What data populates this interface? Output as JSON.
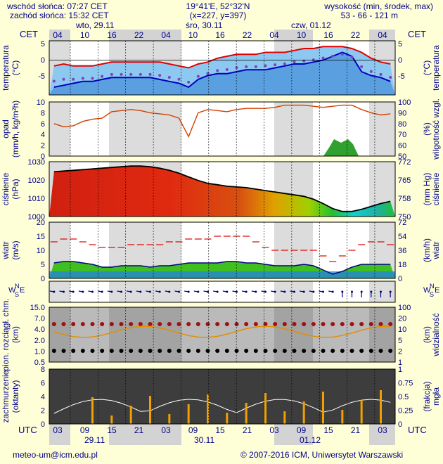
{
  "header": {
    "sunrise": "wschód słońca: 07:27 CET",
    "sunset": "zachód słońca: 15:32 CET",
    "coords": "19°41'E, 52°32'N",
    "grid": "(x=227, y=397)",
    "height_label": "wysokość (min, środek, max)",
    "height_values": "53 - 66 - 121 m"
  },
  "footer": {
    "email": "meteo-um@icm.edu.pl",
    "copyright": "© 2007-2016 ICM, Uniwersytet Warszawski"
  },
  "timezone": {
    "top": "CET",
    "bottom": "UTC"
  },
  "days_top": [
    "wto, 29.11",
    "śro, 30.11",
    "czw, 01.12"
  ],
  "days_bottom": [
    "29.11",
    "30.11",
    "01.12"
  ],
  "hours_top": [
    "04",
    "10",
    "16",
    "22",
    "04",
    "10",
    "16",
    "22",
    "04",
    "10",
    "16",
    "22",
    "04"
  ],
  "hours_bottom": [
    "03",
    "09",
    "15",
    "21",
    "03",
    "09",
    "15",
    "21",
    "03",
    "09",
    "15",
    "21",
    "03"
  ],
  "panels": {
    "temperature": {
      "left_label": "temperatura",
      "left_unit": "(°C)",
      "right_label": "temperatura",
      "right_unit": "(°C)",
      "ticks": [
        "5",
        "0",
        "-5"
      ]
    },
    "precip": {
      "left_label": "opad",
      "left_unit": "(mm/h, kg/m²h)",
      "right_label": "wilgotność wzgl.",
      "right_unit": "(%)",
      "left_ticks": [
        "10",
        "8",
        "6",
        "4",
        "2",
        "0"
      ],
      "right_ticks": [
        "100",
        "90",
        "80",
        "70",
        "60",
        "50"
      ]
    },
    "pressure": {
      "left_label": "ciśnienie",
      "left_unit": "(hPa)",
      "right_label": "ciśnienie",
      "right_unit": "(mm Hg)",
      "left_ticks": [
        "1030",
        "1020",
        "1010",
        "1000"
      ],
      "right_ticks": [
        "772",
        "765",
        "758",
        "750"
      ]
    },
    "wind": {
      "left_label": "wiatr",
      "left_unit": "(m/s)",
      "right_label": "wiatr",
      "right_unit": "(km/h)",
      "left_ticks": [
        "20",
        "15",
        "10",
        "5",
        "0"
      ],
      "right_ticks": [
        "72",
        "54",
        "36",
        "18",
        "0"
      ]
    },
    "wind_dir": {
      "n": "N",
      "w": "W",
      "e": "E",
      "s": "S"
    },
    "visibility": {
      "left_label": "pion. rozciągł. chm.",
      "left_unit": "(km)",
      "right_label": "widzialność",
      "right_unit": "(km)",
      "left_ticks": [
        "15.0",
        "7.0",
        "4.0",
        "2.0",
        "1.0",
        "0.5"
      ],
      "right_ticks": [
        "100",
        "20",
        "10",
        "5",
        "2",
        "1"
      ]
    },
    "clouds": {
      "left_label": "zachmurzenie",
      "left_unit": "(oktanty)",
      "right_label": "mgła",
      "right_unit": "(frakcja)",
      "left_ticks": [
        "8",
        "6",
        "4",
        "2",
        "0"
      ],
      "right_ticks": [
        "1",
        "0.75",
        "0.5",
        "0.25",
        "0"
      ]
    }
  },
  "chart_data": [
    {
      "type": "line",
      "title": "temperatura",
      "ylabel": "(°C)",
      "ylim": [
        -9,
        5
      ],
      "series": [
        {
          "name": "max",
          "values": [
            -1.5,
            -1,
            -1.5,
            -1.5,
            -1.5,
            -1,
            -0.5,
            -0.5,
            -0.5,
            -0.5,
            -0.5,
            -0.5,
            -1,
            -1.5,
            -2,
            -1,
            -0.5,
            0.5,
            1,
            1.5,
            1.5,
            1.5,
            2,
            2,
            2,
            2.5,
            3,
            3,
            3.5,
            3.5,
            3.5,
            3,
            2,
            0.5,
            -0.5,
            -1
          ]
        },
        {
          "name": "min",
          "values": [
            -7,
            -6.5,
            -6,
            -5.5,
            -5.5,
            -5,
            -4.5,
            -4.5,
            -4.5,
            -4.5,
            -4.5,
            -5,
            -5.5,
            -6,
            -7,
            -5,
            -4,
            -3.5,
            -3.5,
            -3,
            -2.5,
            -2.5,
            -2.5,
            -2,
            -1.5,
            -1,
            -1,
            -0.5,
            0,
            1,
            2,
            1,
            -3,
            -4,
            -4.5,
            -5.5
          ]
        }
      ]
    },
    {
      "type": "line",
      "title": "wilgotność wzgl.",
      "ylabel": "(%)",
      "ylim": [
        50,
        100
      ],
      "values": [
        80,
        77,
        78,
        82,
        84,
        85,
        91,
        92,
        93,
        92,
        90,
        89,
        88,
        85,
        68,
        90,
        93,
        92,
        91,
        93,
        94,
        94,
        94,
        95,
        97,
        97,
        97,
        96,
        95,
        96,
        97,
        97,
        93,
        90,
        88,
        89
      ]
    },
    {
      "type": "line",
      "title": "ciśnienie",
      "ylabel": "(hPa)",
      "ylim": [
        994,
        1032
      ],
      "values": [
        1025,
        1025.5,
        1026,
        1026.5,
        1027,
        1027.5,
        1028,
        1028.5,
        1029,
        1029,
        1028.5,
        1027.5,
        1026,
        1024,
        1021.5,
        1019,
        1017,
        1016,
        1015,
        1014.5,
        1014,
        1013,
        1012,
        1011,
        1010,
        1009,
        1008,
        1006,
        1003,
        999.5,
        997.5,
        997.5,
        999,
        1001,
        1003,
        1004.5
      ]
    },
    {
      "type": "line",
      "title": "wiatr",
      "ylabel": "(m/s)",
      "ylim": [
        0,
        20
      ],
      "series": [
        {
          "name": "średni",
          "values": [
            5.5,
            6,
            6,
            5.5,
            5,
            4,
            4,
            4.5,
            4.5,
            4.5,
            4,
            4.5,
            4.5,
            5,
            5.5,
            5.5,
            5.5,
            5.5,
            6,
            6,
            5.5,
            5.5,
            5,
            4.5,
            4.5,
            4.5,
            5,
            4.5,
            3,
            1.5,
            2.5,
            4,
            5,
            5,
            5,
            5
          ]
        },
        {
          "name": "porywy",
          "values": [
            13,
            14,
            14,
            13,
            12,
            11,
            11,
            11,
            12,
            12,
            12,
            12,
            13,
            13,
            14,
            14,
            14,
            15,
            15,
            15,
            15,
            13,
            11,
            10,
            10,
            10,
            10,
            10,
            8,
            6,
            8,
            10,
            12,
            13,
            13,
            12
          ]
        }
      ]
    }
  ]
}
